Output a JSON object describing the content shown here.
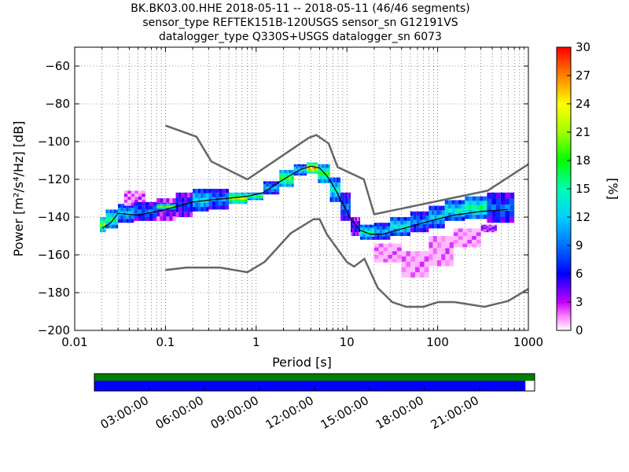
{
  "title": {
    "line1": "BK.BK03.00.HHE   2018-05-11 -- 2018-05-11  (46/46 segments)",
    "line2": "sensor_type REFTEK151B-120USGS sensor_sn G12191VS",
    "line3": "datalogger_type Q330S+USGS datalogger_sn 6073"
  },
  "chart_data": {
    "type": "heatmap",
    "xlabel": "Period [s]",
    "ylabel": "Power [m²/s⁴/Hz] [dB]",
    "xscale": "log",
    "xlim": [
      0.01,
      1000
    ],
    "ylim": [
      -200,
      -50
    ],
    "xticks": [
      0.01,
      0.1,
      1,
      10,
      100,
      1000
    ],
    "xtick_labels": [
      "0.01",
      "0.1",
      "1",
      "10",
      "100",
      "1000"
    ],
    "yticks": [
      -200,
      -180,
      -160,
      -140,
      -120,
      -100,
      -80,
      -60
    ],
    "ytick_labels": [
      "−200",
      "−180",
      "−160",
      "−140",
      "−120",
      "−100",
      "−80",
      "−60"
    ],
    "grid": true,
    "colorbar": {
      "label": "[%]",
      "range": [
        0,
        30
      ],
      "ticks": [
        0,
        3,
        6,
        9,
        12,
        15,
        18,
        21,
        24,
        27,
        30
      ],
      "tick_labels": [
        "0",
        "3",
        "6",
        "9",
        "12",
        "15",
        "18",
        "21",
        "24",
        "27",
        "30"
      ],
      "colormap": "pqlx"
    },
    "noise_models": [
      {
        "name": "NHNM",
        "color": "#666666",
        "points": [
          [
            0.1,
            -91.5
          ],
          [
            0.22,
            -97.4
          ],
          [
            0.32,
            -110.5
          ],
          [
            0.8,
            -120
          ],
          [
            3.8,
            -98
          ],
          [
            4.6,
            -96.5
          ],
          [
            6.3,
            -101
          ],
          [
            7.9,
            -113.5
          ],
          [
            15.4,
            -120
          ],
          [
            20,
            -138.5
          ],
          [
            354.8,
            -126
          ],
          [
            1000,
            -112
          ]
        ]
      },
      {
        "name": "NLNM",
        "color": "#666666",
        "points": [
          [
            0.1,
            -168
          ],
          [
            0.17,
            -166.7
          ],
          [
            0.4,
            -166.7
          ],
          [
            0.8,
            -169.2
          ],
          [
            1.24,
            -163.7
          ],
          [
            2.4,
            -148.6
          ],
          [
            4.3,
            -141.1
          ],
          [
            5,
            -141.1
          ],
          [
            6,
            -149
          ],
          [
            10,
            -163.8
          ],
          [
            12,
            -166.2
          ],
          [
            15.6,
            -162.1
          ],
          [
            21.9,
            -177.5
          ],
          [
            31.6,
            -185
          ],
          [
            45,
            -187.5
          ],
          [
            70,
            -187.5
          ],
          [
            101,
            -185
          ],
          [
            154,
            -185
          ],
          [
            328,
            -187.5
          ],
          [
            600,
            -184.4
          ],
          [
            1000,
            -178
          ]
        ]
      }
    ],
    "mode_curve": {
      "color": "#000000",
      "points": [
        [
          0.02,
          -146
        ],
        [
          0.025,
          -143
        ],
        [
          0.03,
          -138
        ],
        [
          0.05,
          -139
        ],
        [
          0.08,
          -137
        ],
        [
          0.12,
          -135
        ],
        [
          0.2,
          -132
        ],
        [
          0.3,
          -131
        ],
        [
          0.5,
          -130
        ],
        [
          0.8,
          -129
        ],
        [
          1.2,
          -127
        ],
        [
          2,
          -120
        ],
        [
          3,
          -115
        ],
        [
          4,
          -113
        ],
        [
          5,
          -114
        ],
        [
          6,
          -118
        ],
        [
          7,
          -123
        ],
        [
          8,
          -128
        ],
        [
          9,
          -133
        ],
        [
          11,
          -141
        ],
        [
          14,
          -147
        ],
        [
          18,
          -149
        ],
        [
          25,
          -149
        ],
        [
          35,
          -147
        ],
        [
          50,
          -145
        ],
        [
          70,
          -143
        ],
        [
          100,
          -141
        ],
        [
          150,
          -139
        ],
        [
          300,
          -137
        ],
        [
          600,
          -136
        ]
      ]
    },
    "density": [
      {
        "x": [
          0.019,
          0.022
        ],
        "ymin": -148,
        "ymax": -140,
        "p": 20
      },
      {
        "x": [
          0.022,
          0.03
        ],
        "ymin": -146,
        "ymax": -136,
        "p": 16
      },
      {
        "x": [
          0.03,
          0.045
        ],
        "ymin": -143,
        "ymax": -133,
        "p": 12
      },
      {
        "x": [
          0.035,
          0.06
        ],
        "ymin": -134,
        "ymax": -126,
        "p": 2
      },
      {
        "x": [
          0.045,
          0.08
        ],
        "ymin": -142,
        "ymax": -132,
        "p": 9
      },
      {
        "x": [
          0.08,
          0.13
        ],
        "ymin": -142,
        "ymax": -130,
        "p": 5
      },
      {
        "x": [
          0.08,
          0.13
        ],
        "ymin": -136,
        "ymax": -133,
        "p": 20
      },
      {
        "x": [
          0.13,
          0.2
        ],
        "ymin": -140,
        "ymax": -127,
        "p": 7
      },
      {
        "x": [
          0.2,
          0.3
        ],
        "ymin": -137,
        "ymax": -125,
        "p": 13
      },
      {
        "x": [
          0.3,
          0.5
        ],
        "ymin": -136,
        "ymax": -125,
        "p": 10
      },
      {
        "x": [
          0.5,
          0.8
        ],
        "ymin": -133,
        "ymax": -127,
        "p": 22
      },
      {
        "x": [
          0.8,
          1.2
        ],
        "ymin": -131,
        "ymax": -127,
        "p": 17
      },
      {
        "x": [
          1.2,
          1.8
        ],
        "ymin": -128,
        "ymax": -121,
        "p": 11
      },
      {
        "x": [
          1.8,
          2.6
        ],
        "ymin": -124,
        "ymax": -115,
        "p": 19
      },
      {
        "x": [
          2.6,
          3.6
        ],
        "ymin": -118,
        "ymax": -112,
        "p": 13
      },
      {
        "x": [
          3.6,
          4.8
        ],
        "ymin": -117,
        "ymax": -111,
        "p": 26
      },
      {
        "x": [
          4.8,
          6.5
        ],
        "ymin": -122,
        "ymax": -112,
        "p": 18
      },
      {
        "x": [
          6.5,
          8.5
        ],
        "ymin": -132,
        "ymax": -119,
        "p": 14
      },
      {
        "x": [
          8.5,
          11
        ],
        "ymin": -142,
        "ymax": -127,
        "p": 9
      },
      {
        "x": [
          11,
          14
        ],
        "ymin": -150,
        "ymax": -140,
        "p": 6
      },
      {
        "x": [
          14,
          20
        ],
        "ymin": -152,
        "ymax": -144,
        "p": 15
      },
      {
        "x": [
          20,
          30
        ],
        "ymin": -152,
        "ymax": -143,
        "p": 11
      },
      {
        "x": [
          30,
          50
        ],
        "ymin": -150,
        "ymax": -140,
        "p": 14
      },
      {
        "x": [
          50,
          80
        ],
        "ymin": -148,
        "ymax": -137,
        "p": 10
      },
      {
        "x": [
          80,
          120
        ],
        "ymin": -146,
        "ymax": -134,
        "p": 12
      },
      {
        "x": [
          120,
          200
        ],
        "ymin": -142,
        "ymax": -131,
        "p": 14
      },
      {
        "x": [
          200,
          350
        ],
        "ymin": -141,
        "ymax": -129,
        "p": 16
      },
      {
        "x": [
          350,
          700
        ],
        "ymin": -143,
        "ymax": -127,
        "p": 9
      },
      {
        "x": [
          20,
          40
        ],
        "ymin": -164,
        "ymax": -154,
        "p": 1
      },
      {
        "x": [
          40,
          80
        ],
        "ymin": -172,
        "ymax": -158,
        "p": 1
      },
      {
        "x": [
          80,
          150
        ],
        "ymin": -166,
        "ymax": -150,
        "p": 1
      },
      {
        "x": [
          150,
          300
        ],
        "ymin": -156,
        "ymax": -146,
        "p": 1
      },
      {
        "x": [
          300,
          450
        ],
        "ymin": -148,
        "ymax": -144,
        "p": 4
      }
    ]
  },
  "timeline": {
    "tick_labels": [
      "03:00:00",
      "06:00:00",
      "09:00:00",
      "12:00:00",
      "15:00:00",
      "18:00:00",
      "21:00:00"
    ],
    "top_bar_color": "#008000",
    "bottom_bar_color": "#0000ff",
    "coverage_fraction": 0.979
  }
}
